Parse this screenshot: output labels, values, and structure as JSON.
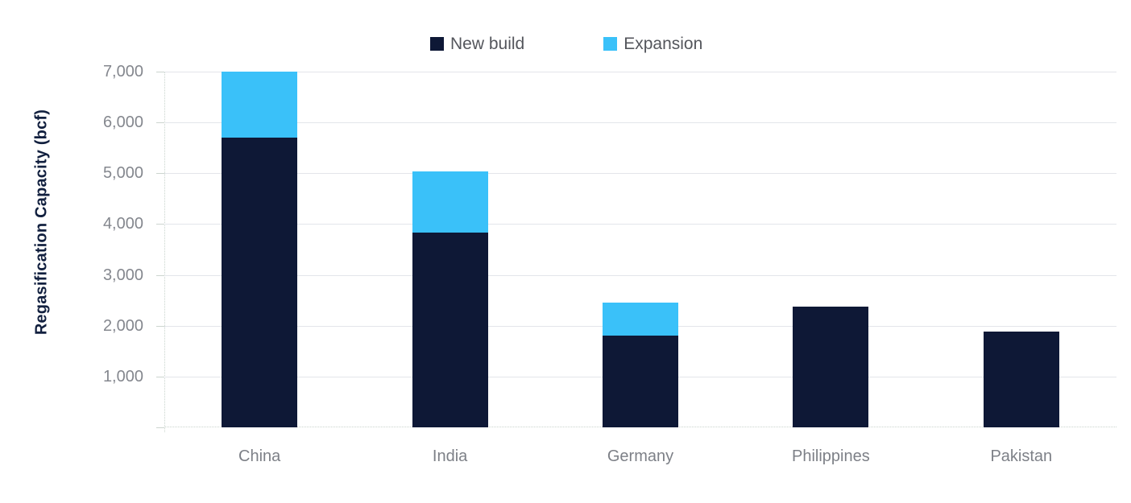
{
  "chart_data": {
    "type": "bar",
    "stacked": true,
    "title": "",
    "xlabel": "",
    "ylabel": "Regasification Capacity (bcf)",
    "categories": [
      "China",
      "India",
      "Germany",
      "Philippines",
      "Pakistan"
    ],
    "series": [
      {
        "name": "New build",
        "color": "#0e1836",
        "values": [
          5700,
          3830,
          1810,
          2370,
          1880
        ]
      },
      {
        "name": "Expansion",
        "color": "#3ac1f9",
        "values": [
          1300,
          1200,
          650,
          0,
          0
        ]
      }
    ],
    "totals": [
      7000,
      5030,
      2460,
      2370,
      1880
    ],
    "ylim": [
      0,
      7000
    ],
    "ytick_step": 1000,
    "yticks": [
      {
        "value": 1000,
        "label": "1,000"
      },
      {
        "value": 2000,
        "label": "2,000"
      },
      {
        "value": 3000,
        "label": "3,000"
      },
      {
        "value": 4000,
        "label": "4,000"
      },
      {
        "value": 5000,
        "label": "5,000"
      },
      {
        "value": 6000,
        "label": "6,000"
      },
      {
        "value": 7000,
        "label": "7,000"
      }
    ],
    "grid": "horizontal",
    "legend_position": "top-center"
  },
  "colors": {
    "background": "#ffffff",
    "gridline": "#e3e5ea",
    "axis_line": "#c9d4cd",
    "tick_label_text": "#84878e",
    "category_label_text": "#7d8087",
    "legend_text": "#54565c",
    "axis_title_text": "#12203f",
    "series_new_build": "#0e1836",
    "series_expansion": "#3ac1f9"
  }
}
